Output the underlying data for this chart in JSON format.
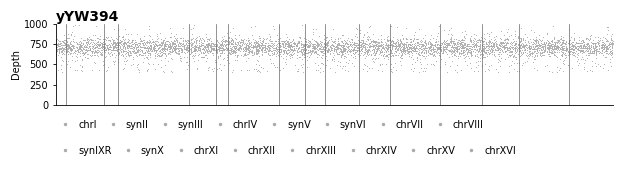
{
  "title": "yYW394",
  "ylabel": "Depth",
  "ylim": [
    0,
    1000
  ],
  "yticks": [
    0,
    250,
    500,
    750,
    1000
  ],
  "chromosomes": [
    "chrI",
    "synII",
    "synIII",
    "chrIV",
    "synV",
    "synVI",
    "chrVII",
    "chrVIII",
    "synIXR",
    "synX",
    "chrXI",
    "chrXII",
    "chrXIII",
    "chrXIV",
    "chrXV",
    "chrXVI"
  ],
  "n_segments": 16,
  "mean_depth": 710,
  "std_depth": 60,
  "scatter_color": "#aaaaaa",
  "vline_color": "#666666",
  "background_color": "#ffffff",
  "title_fontsize": 10,
  "axis_fontsize": 7,
  "legend_fontsize": 7,
  "dot_size": 0.5,
  "segment_sizes": [
    230,
    813,
    316,
    1532,
    577,
    270,
    1090,
    563,
    440,
    745,
    666,
    1078,
    924,
    784,
    1091,
    949
  ],
  "seed": 42
}
